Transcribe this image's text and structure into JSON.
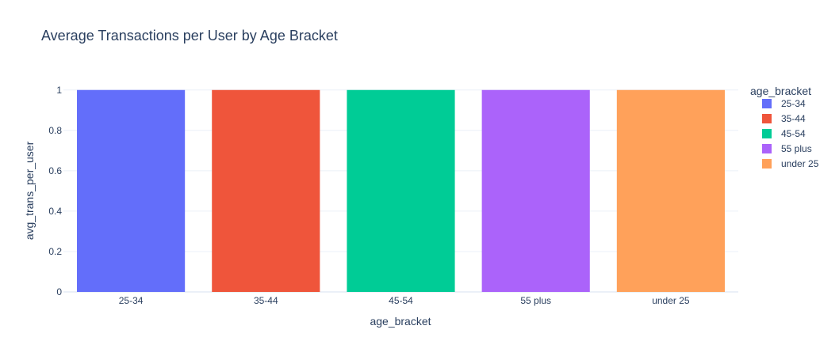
{
  "chart_data": {
    "type": "bar",
    "title": "Average Transactions per User by Age Bracket",
    "xlabel": "age_bracket",
    "ylabel": "avg_trans_per_user",
    "categories": [
      "25-34",
      "35-44",
      "45-54",
      "55 plus",
      "under 25"
    ],
    "values": [
      1,
      1,
      1,
      1,
      1
    ],
    "ylim": [
      0,
      1.05
    ],
    "yticks": [
      0,
      0.2,
      0.4,
      0.6,
      0.8,
      1
    ],
    "ytick_labels": [
      "0",
      "0.2",
      "0.4",
      "0.6",
      "0.8",
      "1"
    ],
    "grid": true,
    "legend": {
      "title": "age_bracket",
      "position": "right",
      "entries": [
        "25-34",
        "35-44",
        "45-54",
        "55 plus",
        "under 25"
      ]
    },
    "colors": [
      "#636efa",
      "#EF553B",
      "#00cc96",
      "#ab63fa",
      "#FFA15A"
    ]
  }
}
